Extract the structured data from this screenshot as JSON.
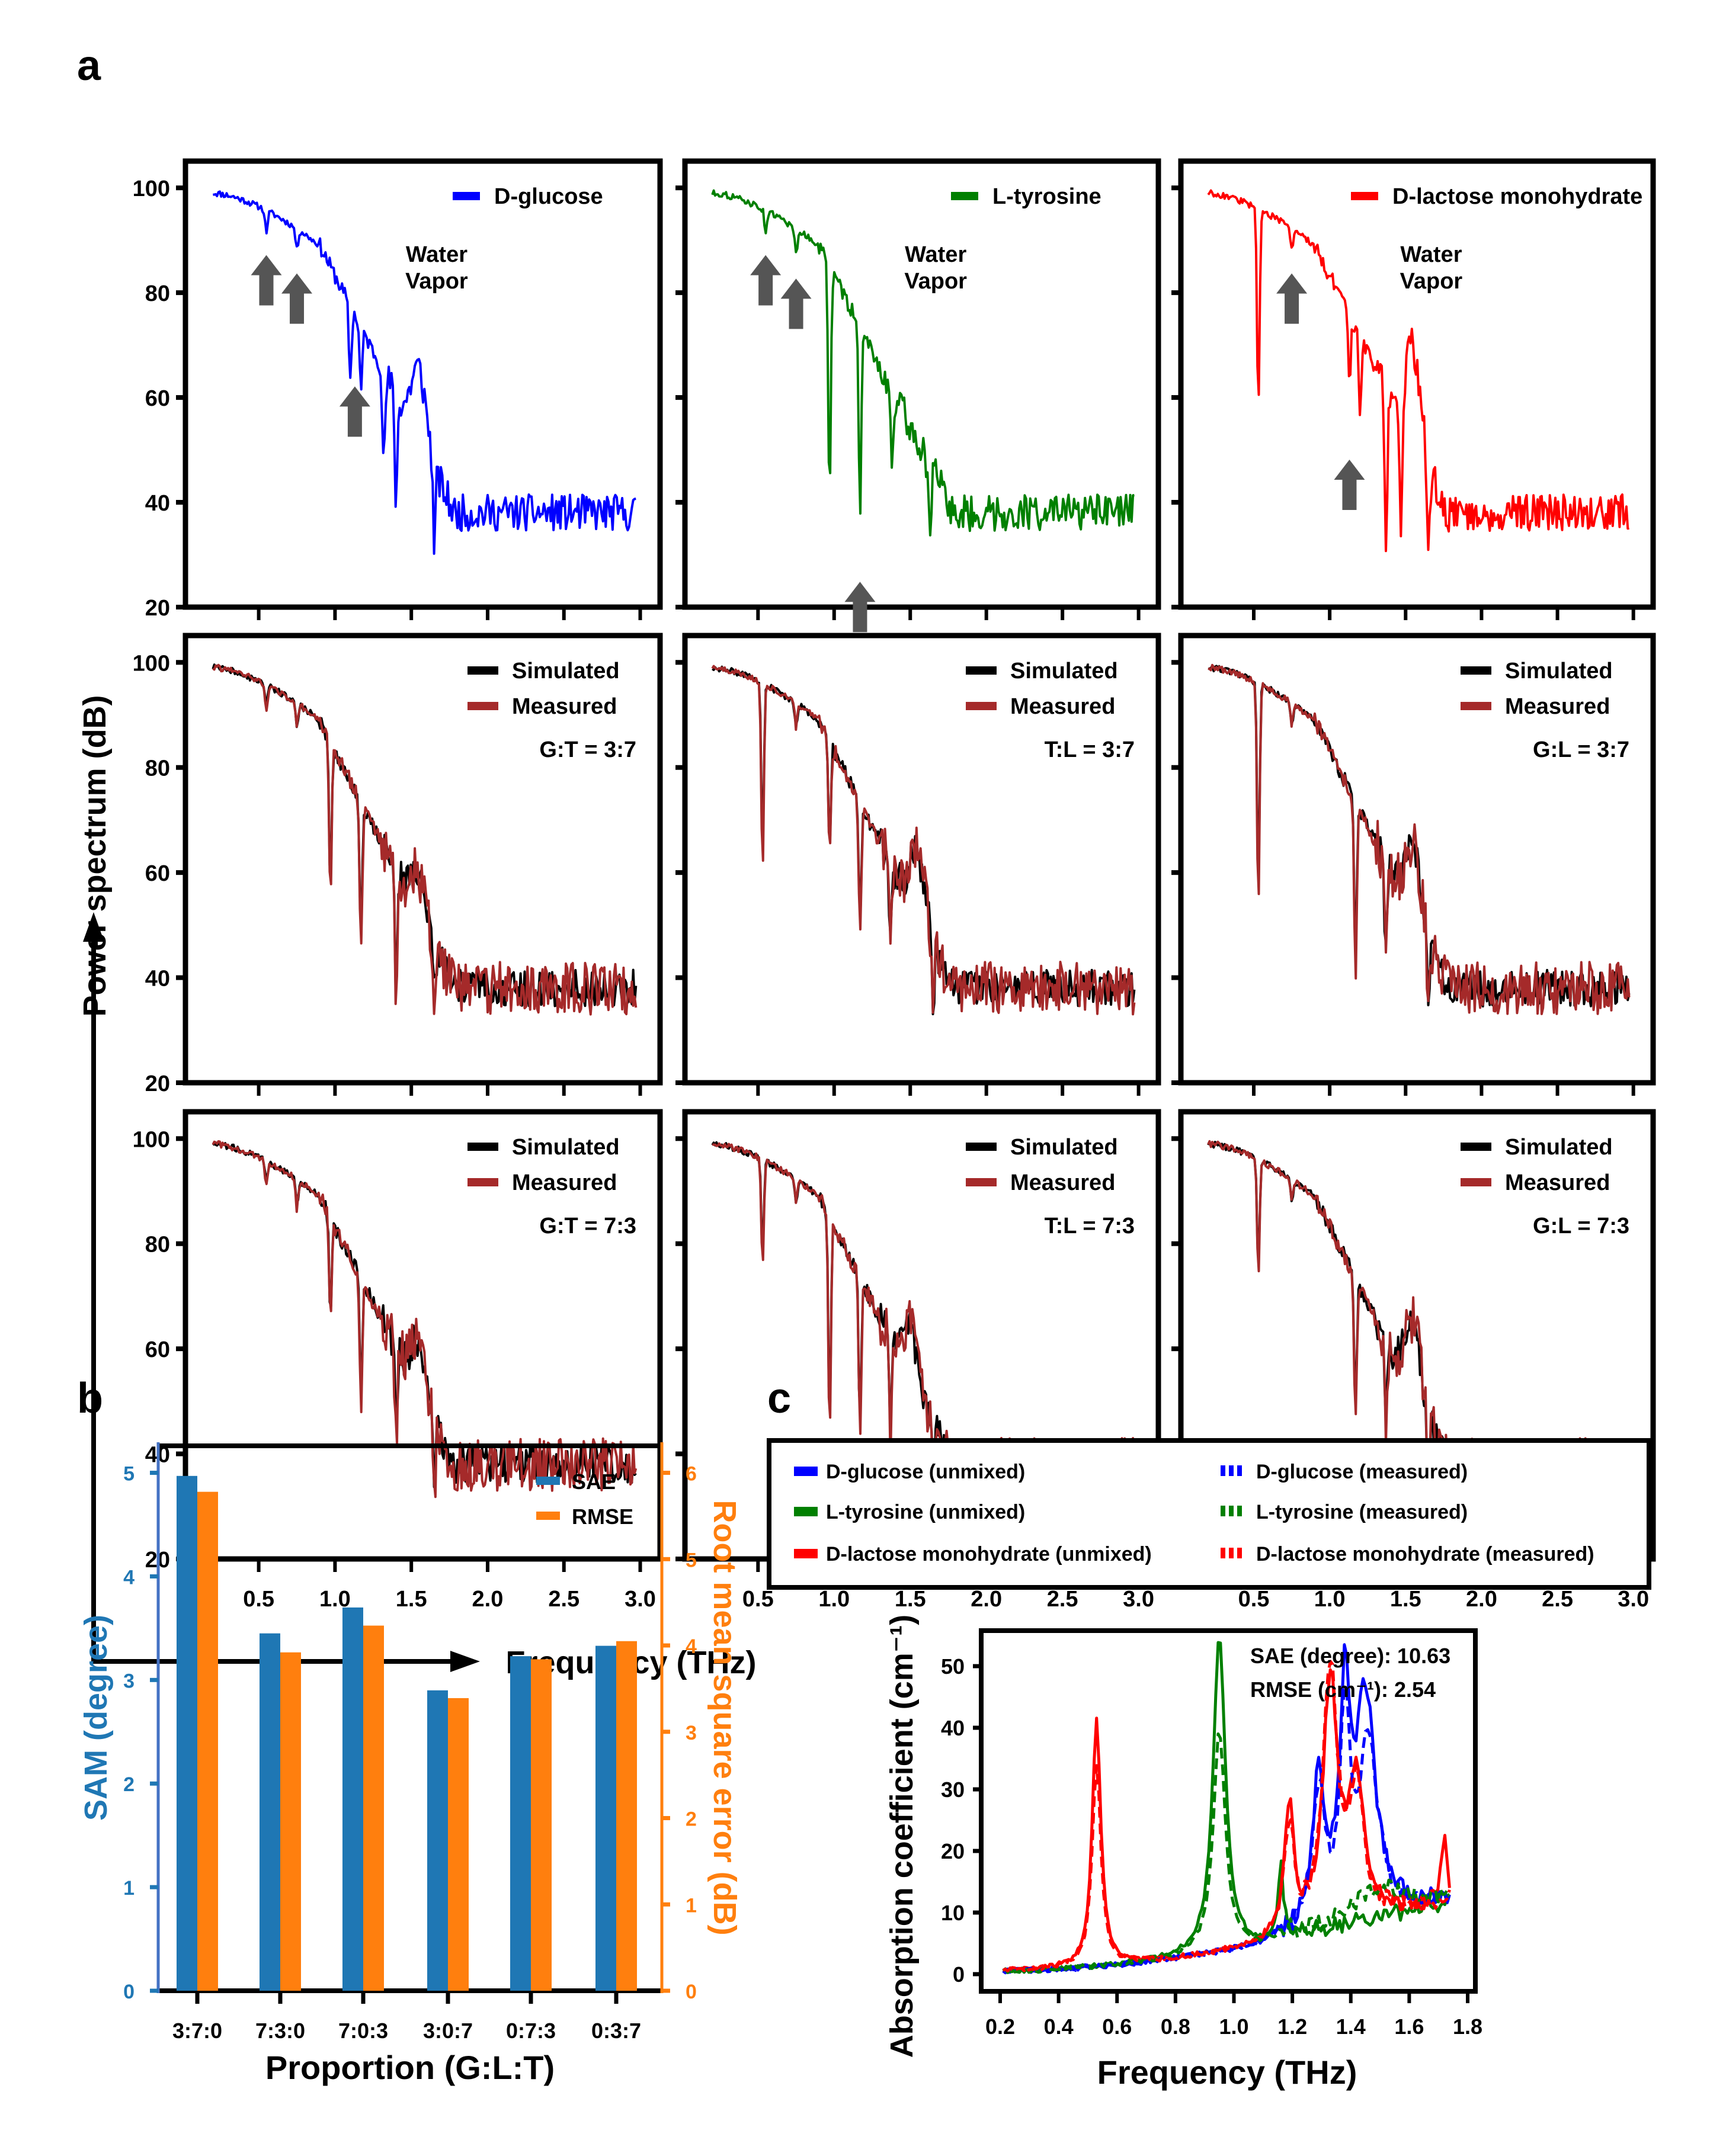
{
  "panel_labels": {
    "a": "a",
    "b": "b",
    "c": "c"
  },
  "colors": {
    "glucose": "#0000ff",
    "tyrosine": "#008000",
    "lactose": "#ff0000",
    "simulated": "#000000",
    "measured": "#a52a2a",
    "sae_bar": "#1f77b4",
    "rmse_bar": "#ff7f0e",
    "arrow": "#555555",
    "sam_axis": "#4472c4",
    "rmse_axis": "#ff7f0e"
  },
  "chart_data": [
    {
      "id": "a",
      "type": "line",
      "title": "",
      "xlabel": "Frequency (THz)",
      "ylabel": "Power spectrum (dB)",
      "xlim": [
        0.2,
        3.0
      ],
      "ylim": [
        20,
        100
      ],
      "xticks": [
        "0.5",
        "1.0",
        "1.5",
        "2.0",
        "2.5",
        "3.0"
      ],
      "yticks": [
        "20",
        "40",
        "60",
        "80",
        "100"
      ],
      "annotation_water": [
        "Water",
        "Vapor"
      ],
      "panels": [
        {
          "row": 0,
          "col": 0,
          "kind": "pure",
          "series": [
            {
              "name": "D-glucose",
              "color_key": "glucose",
              "dips": [
                [
                  0.55,
                  4
                ],
                [
                  0.75,
                  4
                ],
                [
                  1.1,
                  14
                ],
                [
                  1.17,
                  12
                ],
                [
                  1.32,
                  18
                ],
                [
                  1.4,
                  20
                ],
                [
                  1.65,
                  15
                ]
              ],
              "bumps": [
                [
                  1.55,
                  14
                ]
              ]
            }
          ],
          "arrows_thz": [
            0.55,
            0.75,
            1.13
          ],
          "water_pos_thz": 1.2
        },
        {
          "row": 0,
          "col": 1,
          "kind": "pure",
          "series": [
            {
              "name": "L-tyrosine",
              "color_key": "tyrosine",
              "dips": [
                [
                  0.55,
                  4
                ],
                [
                  0.75,
                  5
                ],
                [
                  0.97,
                  45
                ],
                [
                  1.17,
                  35
                ],
                [
                  1.38,
                  14
                ],
                [
                  1.63,
                  10
                ]
              ],
              "bumps": []
            }
          ],
          "arrows_thz": [
            0.55,
            0.75,
            1.17
          ],
          "water_pos_thz": 1.2
        },
        {
          "row": 0,
          "col": 2,
          "kind": "pure",
          "series": [
            {
              "name": "D-lactose monohydrate",
              "color_key": "lactose",
              "dips": [
                [
                  0.53,
                  38
                ],
                [
                  0.75,
                  4
                ],
                [
                  1.13,
                  14
                ],
                [
                  1.2,
                  15
                ],
                [
                  1.37,
                  30
                ],
                [
                  1.47,
                  28
                ],
                [
                  1.65,
                  18
                ]
              ],
              "bumps": [
                [
                  1.55,
                  18
                ]
              ]
            }
          ],
          "arrows_thz": [
            0.75,
            1.13
          ],
          "water_pos_thz": 1.2
        },
        {
          "row": 1,
          "col": 0,
          "kind": "mix",
          "ratio_label": "G:T = 3:7",
          "dips": [
            [
              0.55,
              4
            ],
            [
              0.75,
              4
            ],
            [
              0.97,
              28
            ],
            [
              1.17,
              25
            ],
            [
              1.4,
              22
            ],
            [
              1.65,
              10
            ]
          ],
          "bumps": [
            [
              1.55,
              8
            ]
          ]
        },
        {
          "row": 1,
          "col": 1,
          "kind": "mix",
          "ratio_label": "T:L = 3:7",
          "dips": [
            [
              0.53,
              32
            ],
            [
              0.75,
              4
            ],
            [
              0.97,
              20
            ],
            [
              1.17,
              22
            ],
            [
              1.37,
              15
            ],
            [
              1.65,
              12
            ]
          ],
          "bumps": [
            [
              1.55,
              12
            ]
          ]
        },
        {
          "row": 1,
          "col": 2,
          "kind": "mix",
          "ratio_label": "G:L = 3:7",
          "dips": [
            [
              0.53,
              38
            ],
            [
              0.75,
              4
            ],
            [
              1.17,
              30
            ],
            [
              1.37,
              18
            ],
            [
              1.65,
              12
            ]
          ],
          "bumps": [
            [
              1.55,
              14
            ]
          ]
        },
        {
          "row": 2,
          "col": 0,
          "kind": "mix",
          "ratio_label": "G:T = 7:3",
          "dips": [
            [
              0.55,
              4
            ],
            [
              0.75,
              5
            ],
            [
              0.97,
              18
            ],
            [
              1.17,
              22
            ],
            [
              1.4,
              15
            ],
            [
              1.65,
              14
            ]
          ],
          "bumps": [
            [
              1.55,
              10
            ]
          ]
        },
        {
          "row": 2,
          "col": 1,
          "kind": "mix",
          "ratio_label": "T:L = 7:3",
          "dips": [
            [
              0.53,
              18
            ],
            [
              0.75,
              4
            ],
            [
              0.97,
              38
            ],
            [
              1.17,
              28
            ],
            [
              1.37,
              18
            ],
            [
              1.65,
              10
            ]
          ],
          "bumps": [
            [
              1.5,
              10
            ]
          ]
        },
        {
          "row": 2,
          "col": 2,
          "kind": "mix",
          "ratio_label": "G:L = 7:3",
          "dips": [
            [
              0.53,
              20
            ],
            [
              0.75,
              4
            ],
            [
              1.17,
              24
            ],
            [
              1.37,
              16
            ],
            [
              1.65,
              12
            ]
          ],
          "bumps": [
            [
              1.55,
              14
            ]
          ]
        }
      ],
      "legend_mix": [
        "Simulated",
        "Measured"
      ]
    },
    {
      "id": "b",
      "type": "bar",
      "title": "",
      "xlabel": "Proportion (G:L:T)",
      "ylabel": "SAM (degree)",
      "ylabel_right": "Root mean square error (dB)",
      "categories": [
        "3:7:0",
        "7:3:0",
        "7:0:3",
        "3:0:7",
        "0:7:3",
        "0:3:7"
      ],
      "series": [
        {
          "name": "SAE",
          "axis": "left",
          "color_key": "sae_bar",
          "values": [
            4.97,
            3.45,
            3.7,
            2.9,
            3.23,
            3.33
          ]
        },
        {
          "name": "RMSE",
          "axis": "right",
          "color_key": "rmse_bar",
          "values": [
            5.78,
            3.92,
            4.23,
            3.39,
            3.84,
            4.05
          ]
        }
      ],
      "ylim": [
        0,
        5.25
      ],
      "ylim_right": [
        0,
        6.3
      ],
      "yticks": [
        "0",
        "1",
        "2",
        "3",
        "4",
        "5"
      ],
      "yticks_right": [
        "0",
        "1",
        "2",
        "3",
        "4",
        "5",
        "6"
      ],
      "legend": "top-right"
    },
    {
      "id": "c",
      "type": "line",
      "title": "",
      "xlabel": "Frequency (THz)",
      "ylabel": "Absorption coefficient (cm⁻¹)",
      "xlim": [
        0.2,
        1.75
      ],
      "ylim": [
        0,
        55
      ],
      "xticks": [
        "0.2",
        "0.4",
        "0.6",
        "0.8",
        "1.0",
        "1.2",
        "1.4",
        "1.6",
        "1.8"
      ],
      "yticks": [
        "0",
        "10",
        "20",
        "30",
        "40",
        "50"
      ],
      "annotations": [
        "SAE (degree): 10.63",
        "RMSE (cm⁻¹): 2.54"
      ],
      "legend": [
        "D-glucose (unmixed)",
        "L-tyrosine (unmixed)",
        "D-lactose monohydrate (unmixed)",
        "D-glucose (measured)",
        "L-tyrosine (measured)",
        "D-lactose monohydrate (measured)"
      ],
      "series": [
        {
          "name": "D-glucose (unmixed)",
          "color_key": "glucose",
          "dash": false,
          "peaks": [
            [
              1.29,
              24,
              0.025
            ],
            [
              1.38,
              35,
              0.02
            ],
            [
              1.45,
              36,
              0.04
            ]
          ]
        },
        {
          "name": "L-tyrosine (unmixed)",
          "color_key": "tyrosine",
          "dash": false,
          "peaks": [
            [
              0.95,
              52,
              0.025
            ],
            [
              1.16,
              12,
              0.01
            ]
          ]
        },
        {
          "name": "D-lactose monohydrate (unmixed)",
          "color_key": "lactose",
          "dash": false,
          "peaks": [
            [
              0.53,
              40,
              0.018
            ],
            [
              1.19,
              20,
              0.02
            ],
            [
              1.33,
              40,
              0.03
            ],
            [
              1.42,
              22,
              0.03
            ],
            [
              1.72,
              12,
              0.01
            ]
          ]
        },
        {
          "name": "D-glucose (measured)",
          "color_key": "glucose",
          "dash": true,
          "peaks": [
            [
              1.29,
              22,
              0.025
            ],
            [
              1.38,
              33,
              0.02
            ],
            [
              1.46,
              28,
              0.04
            ]
          ]
        },
        {
          "name": "L-tyrosine (measured)",
          "color_key": "tyrosine",
          "dash": true,
          "peaks": [
            [
              0.95,
              36,
              0.025
            ],
            [
              1.5,
              5,
              0.1
            ]
          ]
        },
        {
          "name": "D-lactose monohydrate (measured)",
          "color_key": "lactose",
          "dash": true,
          "peaks": [
            [
              0.53,
              33,
              0.018
            ],
            [
              1.19,
              18,
              0.02
            ],
            [
              1.33,
              42,
              0.03
            ],
            [
              1.42,
              20,
              0.03
            ]
          ]
        }
      ]
    }
  ]
}
